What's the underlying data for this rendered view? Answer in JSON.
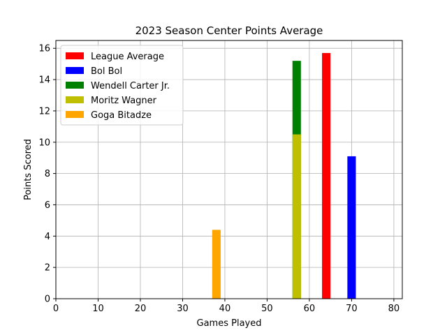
{
  "chart_data": {
    "type": "bar",
    "title": "2023 Season Center Points Average",
    "xlabel": "Games Played",
    "ylabel": "Points Scored",
    "xlim": [
      0,
      82
    ],
    "ylim": [
      0,
      16.5
    ],
    "xticks": [
      0,
      10,
      20,
      30,
      40,
      50,
      60,
      70,
      80
    ],
    "yticks": [
      0,
      2,
      4,
      6,
      8,
      10,
      12,
      14,
      16
    ],
    "grid": true,
    "legend_position": "top-left",
    "bar_width": 2,
    "series": [
      {
        "name": "League Average",
        "color": "#ff0000",
        "x": 64,
        "y": 15.7,
        "base": 0
      },
      {
        "name": "Bol Bol",
        "color": "#0000ff",
        "x": 70,
        "y": 9.1,
        "base": 0
      },
      {
        "name": "Wendell Carter Jr.",
        "color": "#008000",
        "x": 57,
        "y": 15.2,
        "base": 0
      },
      {
        "name": "Moritz Wagner",
        "color": "#bfbf00",
        "x": 57,
        "y": 10.5,
        "base": 0
      },
      {
        "name": "Goga Bitadze",
        "color": "#ffa500",
        "x": 38,
        "y": 4.4,
        "base": 0
      }
    ]
  }
}
